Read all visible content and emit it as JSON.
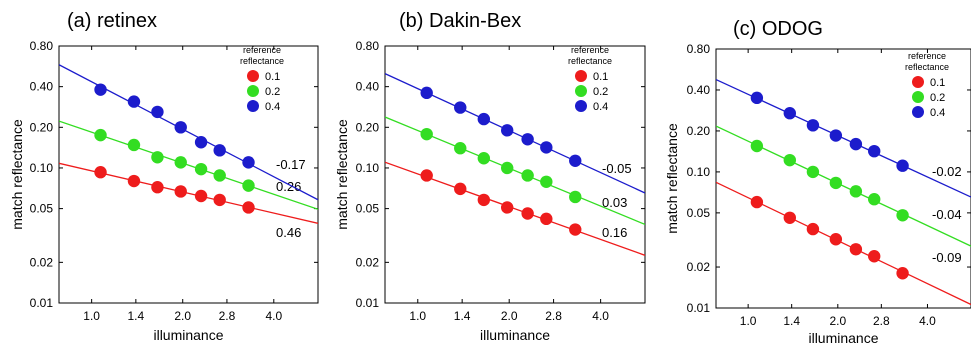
{
  "chart_data": [
    {
      "type": "scatter",
      "title": "(a) retinex",
      "xlabel": "illuminance",
      "ylabel": "match reflectance",
      "xscale": "log",
      "yscale": "log",
      "xticks": [
        "1.0",
        "1.4",
        "2.0",
        "2.8",
        "4.0"
      ],
      "yticks": [
        "0.01",
        "0.02",
        "0.05",
        "0.10",
        "0.20",
        "0.40",
        "0.80"
      ],
      "legend_title": "reference reflectance",
      "x": [
        1.07,
        1.38,
        1.65,
        1.97,
        2.3,
        2.65,
        3.3
      ],
      "series": [
        {
          "name": "0.1",
          "color": "#ee1c1c",
          "values": [
            0.093,
            0.08,
            0.072,
            0.067,
            0.062,
            0.058,
            0.051
          ],
          "slope_label": "0.46"
        },
        {
          "name": "0.2",
          "color": "#33dd22",
          "values": [
            0.175,
            0.148,
            0.12,
            0.11,
            0.098,
            0.088,
            0.074
          ],
          "slope_label": "0.26"
        },
        {
          "name": "0.4",
          "color": "#1c1ccc",
          "values": [
            0.38,
            0.31,
            0.26,
            0.2,
            0.155,
            0.135,
            0.11
          ],
          "slope_label": "-0.17"
        }
      ]
    },
    {
      "type": "scatter",
      "title": "(b) Dakin-Bex",
      "xlabel": "illuminance",
      "ylabel": "match reflectance",
      "xscale": "log",
      "yscale": "log",
      "xticks": [
        "1.0",
        "1.4",
        "2.0",
        "2.8",
        "4.0"
      ],
      "yticks": [
        "0.01",
        "0.02",
        "0.05",
        "0.10",
        "0.20",
        "0.40",
        "0.80"
      ],
      "legend_title": "reference reflectance",
      "x": [
        1.07,
        1.38,
        1.65,
        1.97,
        2.3,
        2.65,
        3.3
      ],
      "series": [
        {
          "name": "0.1",
          "color": "#ee1c1c",
          "values": [
            0.088,
            0.07,
            0.058,
            0.051,
            0.046,
            0.042,
            0.035
          ],
          "slope_label": "0.16"
        },
        {
          "name": "0.2",
          "color": "#33dd22",
          "values": [
            0.178,
            0.14,
            0.118,
            0.1,
            0.088,
            0.079,
            0.061
          ],
          "slope_label": "0.03"
        },
        {
          "name": "0.4",
          "color": "#1c1ccc",
          "values": [
            0.36,
            0.28,
            0.23,
            0.19,
            0.163,
            0.142,
            0.113
          ],
          "slope_label": "-0.05"
        }
      ]
    },
    {
      "type": "scatter",
      "title": "(c) ODOG",
      "xlabel": "illuminance",
      "ylabel": "match reflectance",
      "xscale": "log",
      "yscale": "log",
      "xticks": [
        "1.0",
        "1.4",
        "2.0",
        "2.8",
        "4.0"
      ],
      "yticks": [
        "0.01",
        "0.02",
        "0.05",
        "0.10",
        "0.20",
        "0.40",
        "0.80"
      ],
      "legend_title": "reference reflectance",
      "x": [
        1.07,
        1.38,
        1.65,
        1.97,
        2.3,
        2.65,
        3.3
      ],
      "series": [
        {
          "name": "0.1",
          "color": "#ee1c1c",
          "values": [
            0.06,
            0.046,
            0.038,
            0.032,
            0.027,
            0.024,
            0.018
          ],
          "slope_label": "-0.09"
        },
        {
          "name": "0.2",
          "color": "#33dd22",
          "values": [
            0.155,
            0.122,
            0.1,
            0.083,
            0.072,
            0.063,
            0.048
          ],
          "slope_label": "-0.04"
        },
        {
          "name": "0.4",
          "color": "#1c1ccc",
          "values": [
            0.35,
            0.27,
            0.22,
            0.185,
            0.16,
            0.142,
            0.111
          ],
          "slope_label": "-0.02"
        }
      ]
    }
  ]
}
